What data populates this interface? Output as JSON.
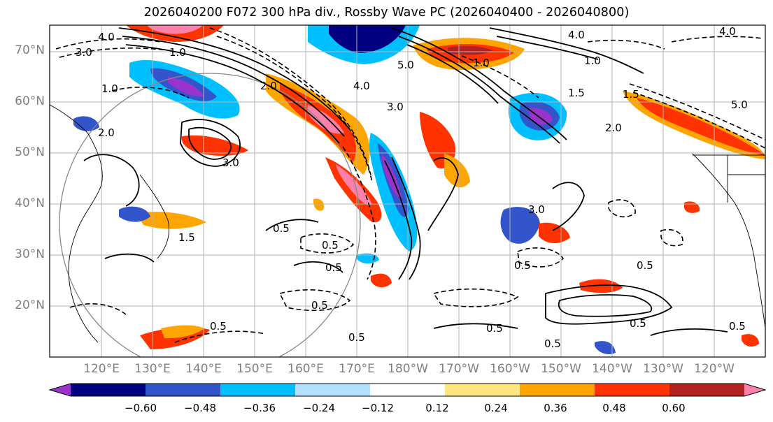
{
  "title": "2026040200 F072 300 hPa div., Rossby Wave PC (2026040400 - 2026040800)",
  "lat_labels": [
    "70°N",
    "60°N",
    "50°N",
    "40°N",
    "30°N",
    "20°N"
  ],
  "lon_labels": [
    "120°E",
    "130°E",
    "140°E",
    "150°E",
    "160°E",
    "170°E",
    "180°W",
    "170°W",
    "160°W",
    "150°W",
    "140°W",
    "130°W",
    "120°W"
  ],
  "colorbar": {
    "colors": [
      "#9933cc",
      "#000080",
      "#3355cc",
      "#00bfff",
      "#b3e0ff",
      "#ffffff",
      "#ffe680",
      "#ffa500",
      "#ff3300",
      "#b22222",
      "#ff80aa"
    ],
    "ticks": [
      "−0.60",
      "−0.48",
      "−0.36",
      "−0.24",
      "−0.12",
      "0.12",
      "0.24",
      "0.36",
      "0.48",
      "0.60"
    ]
  },
  "contour_labels": [
    "4.0",
    "3.0",
    "2.0",
    "1.0",
    "0.5",
    "0.5",
    "0.5",
    "0.5",
    "0.5",
    "0.5",
    "0.5",
    "0.5",
    "0.5",
    "0.5",
    "3.0",
    "2.0",
    "4.0",
    "3.0",
    "5.0",
    "4.0",
    "1.5",
    "1.0",
    "5.0",
    "1.0",
    "0.5",
    "0.5",
    "2.0",
    "3.0",
    "4.0",
    "1.5",
    "1.0",
    "1.5"
  ]
}
